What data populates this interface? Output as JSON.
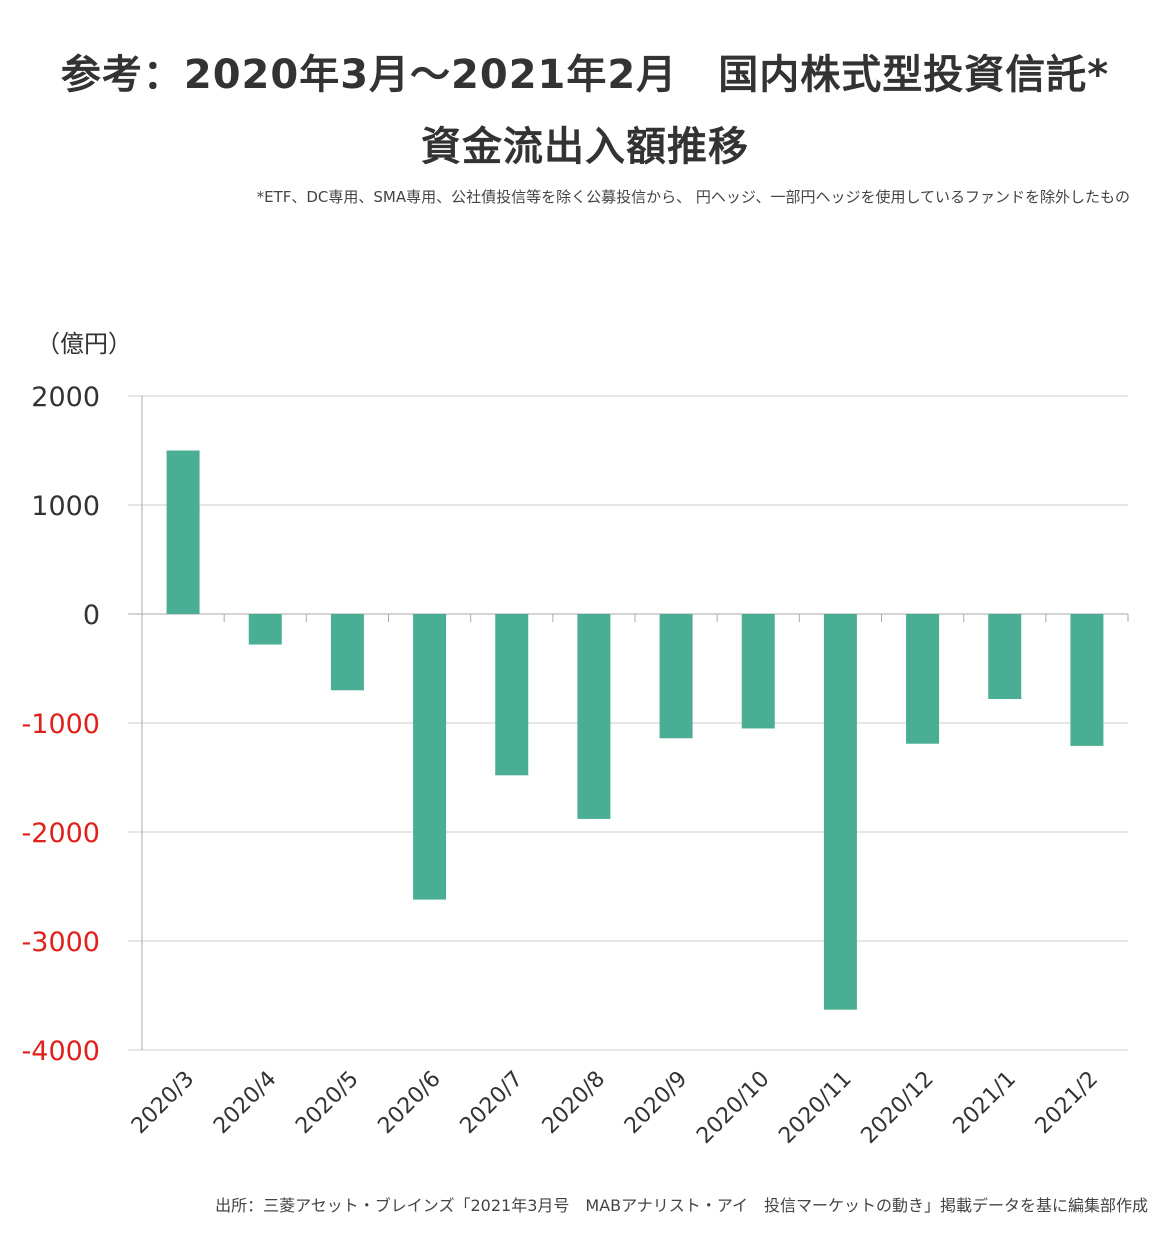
{
  "header": {
    "title_line1": "参考：2020年3月～2021年2月　国内株式型投資信託*",
    "title_line2": "資金流出入額推移",
    "note": "*ETF、DC専用、SMA専用、公社債投信等を除く公募投信から、 円ヘッジ、一部円ヘッジを使用しているファンドを除外したもの"
  },
  "footer": {
    "source": "出所：三菱アセット・ブレインズ「2021年3月号　MABアナリスト・アイ　投信マーケットの動き」掲載データを基に編集部作成"
  },
  "chart_data": {
    "type": "bar",
    "unit_label": "（億円）",
    "categories": [
      "2020/3",
      "2020/4",
      "2020/5",
      "2020/6",
      "2020/7",
      "2020/8",
      "2020/9",
      "2020/10",
      "2020/11",
      "2020/12",
      "2021/1",
      "2021/2"
    ],
    "values": [
      1500,
      -280,
      -700,
      -2620,
      -1480,
      -1880,
      -1140,
      -1050,
      -3630,
      -1190,
      -780,
      -1210
    ],
    "ylim": [
      -4000,
      2000
    ],
    "yticks": [
      "2000",
      "1000",
      "0",
      "-1000",
      "-2000",
      "-3000",
      "-4000"
    ],
    "grid": true,
    "colors": {
      "bar": "#49ae93",
      "positive_tick": "#333333",
      "negative_tick": "#e0201b",
      "grid": "#cccccc"
    }
  }
}
